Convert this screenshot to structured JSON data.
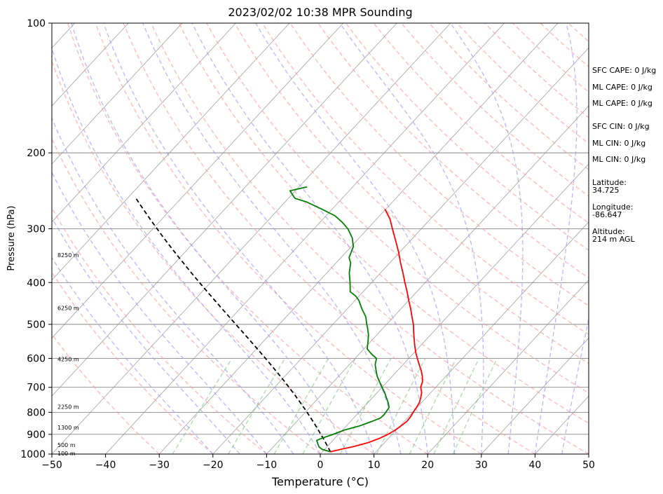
{
  "chart_data": {
    "type": "skew-t",
    "title": "2023/02/02 10:38 MPR Sounding",
    "xlabel": "Temperature (°C)",
    "ylabel": "Pressure (hPa)",
    "xlim": [
      -50,
      50
    ],
    "ylim_hpa": [
      1000,
      100
    ],
    "yscale": "log",
    "x_ticks": [
      "−50",
      "−40",
      "−30",
      "−20",
      "−10",
      "0",
      "10",
      "20",
      "30",
      "40",
      "50"
    ],
    "y_ticks": [
      1000,
      900,
      800,
      700,
      600,
      500,
      400,
      300,
      200,
      100
    ],
    "grid": true,
    "height_labels": [
      {
        "label": "100 m",
        "p": 996
      },
      {
        "label": "500 m",
        "p": 952
      },
      {
        "label": "1300 m",
        "p": 868
      },
      {
        "label": "2250 m",
        "p": 776
      },
      {
        "label": "4250 m",
        "p": 602
      },
      {
        "label": "6250 m",
        "p": 458
      },
      {
        "label": "8250 m",
        "p": 345
      }
    ],
    "series": [
      {
        "color": "#ff0000",
        "points": [
          [
            988,
            1.5
          ],
          [
            975,
            3.0
          ],
          [
            960,
            5.0
          ],
          [
            940,
            7.0
          ],
          [
            920,
            8.3
          ],
          [
            900,
            9.2
          ],
          [
            880,
            9.8
          ],
          [
            860,
            10.2
          ],
          [
            840,
            10.5
          ],
          [
            820,
            10.4
          ],
          [
            800,
            10.1
          ],
          [
            780,
            9.9
          ],
          [
            760,
            9.6
          ],
          [
            740,
            9.0
          ],
          [
            720,
            8.3
          ],
          [
            700,
            7.2
          ],
          [
            680,
            6.6
          ],
          [
            660,
            5.6
          ],
          [
            640,
            4.4
          ],
          [
            620,
            3.0
          ],
          [
            600,
            1.6
          ],
          [
            580,
            0.2
          ],
          [
            560,
            -1.1
          ],
          [
            540,
            -2.4
          ],
          [
            520,
            -3.7
          ],
          [
            500,
            -5.0
          ],
          [
            480,
            -6.6
          ],
          [
            460,
            -8.2
          ],
          [
            440,
            -10.0
          ],
          [
            420,
            -11.8
          ],
          [
            400,
            -13.8
          ],
          [
            380,
            -15.8
          ],
          [
            360,
            -18.0
          ],
          [
            340,
            -20.2
          ],
          [
            320,
            -22.7
          ],
          [
            300,
            -25.4
          ],
          [
            285,
            -27.5
          ],
          [
            270,
            -30.2
          ]
        ]
      },
      {
        "color": "#008000",
        "points": [
          [
            988,
            1.5
          ],
          [
            975,
            -0.5
          ],
          [
            962,
            -1.5
          ],
          [
            945,
            -2.3
          ],
          [
            930,
            -3.0
          ],
          [
            920,
            -2.5
          ],
          [
            900,
            -1.0
          ],
          [
            880,
            0.3
          ],
          [
            860,
            2.5
          ],
          [
            840,
            4.0
          ],
          [
            825,
            5.0
          ],
          [
            810,
            5.1
          ],
          [
            780,
            4.8
          ],
          [
            760,
            3.8
          ],
          [
            740,
            2.6
          ],
          [
            720,
            1.4
          ],
          [
            700,
            0.0
          ],
          [
            680,
            -1.4
          ],
          [
            660,
            -2.8
          ],
          [
            640,
            -4.0
          ],
          [
            620,
            -5.2
          ],
          [
            600,
            -6.0
          ],
          [
            585,
            -7.8
          ],
          [
            570,
            -9.4
          ],
          [
            550,
            -10.4
          ],
          [
            530,
            -11.5
          ],
          [
            510,
            -12.9
          ],
          [
            500,
            -13.7
          ],
          [
            480,
            -15.2
          ],
          [
            460,
            -17.3
          ],
          [
            440,
            -19.3
          ],
          [
            430,
            -20.6
          ],
          [
            420,
            -22.4
          ],
          [
            400,
            -24.0
          ],
          [
            380,
            -25.8
          ],
          [
            360,
            -27.3
          ],
          [
            350,
            -28.5
          ],
          [
            330,
            -29.6
          ],
          [
            315,
            -31.3
          ],
          [
            300,
            -33.7
          ],
          [
            290,
            -35.8
          ],
          [
            280,
            -38.3
          ],
          [
            270,
            -42.0
          ],
          [
            260,
            -46.0
          ],
          [
            255,
            -48.8
          ],
          [
            245,
            -51.0
          ],
          [
            240,
            -48.5
          ]
        ]
      },
      {
        "color": "#000000",
        "dashed": true,
        "points": "parcel"
      }
    ]
  },
  "stats": [
    {
      "text": "SFC CAPE: 0 J/kg"
    },
    {
      "text": "ML CAPE: 0 J/kg"
    },
    {
      "text": "ML CAPE: 0 J/kg"
    },
    {
      "text": "SFC CIN: 0 J/kg"
    },
    {
      "text": "ML CIN: 0 J/kg"
    },
    {
      "text": "ML CIN: 0 J/kg"
    }
  ],
  "location": [
    {
      "label": "Latitude:",
      "value": "34.725"
    },
    {
      "label": "Longitude:",
      "value": "-86.647"
    },
    {
      "label": "Altitude:",
      "value": "214 m AGL"
    }
  ],
  "colors": {
    "isotherm": "#888888",
    "dry_adiabat": "#ff9999",
    "moist_adiabat": "#9999ff",
    "mixing_ratio": "#77bb77",
    "temperature": "#ff0000",
    "dewpoint": "#008000",
    "parcel": "#000000"
  }
}
